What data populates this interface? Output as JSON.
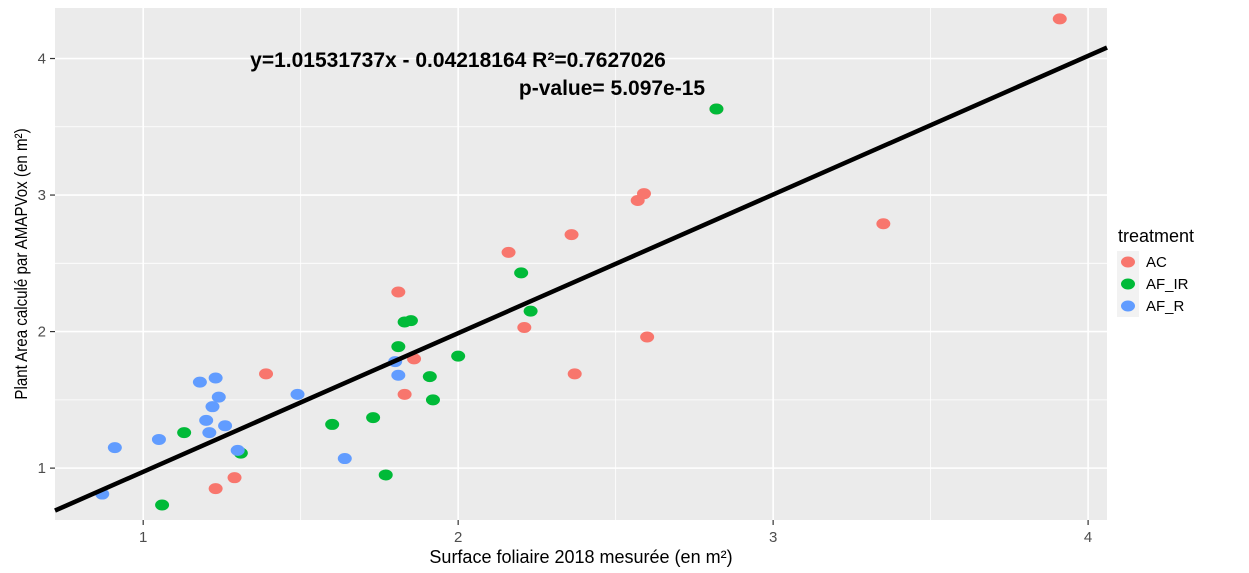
{
  "chart_data": {
    "type": "scatter",
    "xlabel": "Surface foliaire 2018 mesurée (en m²)",
    "ylabel": "Plant Area calculé par AMAPVox (en m²)",
    "xlim": [
      0.72,
      4.06
    ],
    "ylim": [
      0.62,
      4.37
    ],
    "x_ticks": [
      1,
      2,
      3,
      4
    ],
    "y_ticks": [
      1,
      2,
      3,
      4
    ],
    "x_tick_labels": [
      "1",
      "2",
      "3",
      "4"
    ],
    "y_tick_labels": [
      "1",
      "2",
      "3",
      "4"
    ],
    "grid": true,
    "legend": {
      "title": "treatment",
      "position": "right"
    },
    "annotations": [
      "y=1.01531737x - 0.04218164 R²=0.7627026",
      "p-value= 5.097e-15"
    ],
    "regression": {
      "slope": 1.01531737,
      "intercept": -0.04218164
    },
    "series": [
      {
        "name": "AC",
        "color": "#F8766D",
        "points": [
          [
            3.91,
            4.29
          ],
          [
            2.82,
            3.63
          ],
          [
            2.59,
            3.01
          ],
          [
            2.57,
            2.96
          ],
          [
            2.36,
            2.71
          ],
          [
            3.35,
            2.79
          ],
          [
            2.16,
            2.58
          ],
          [
            1.81,
            2.29
          ],
          [
            2.21,
            2.03
          ],
          [
            2.6,
            1.96
          ],
          [
            1.86,
            1.8
          ],
          [
            2.37,
            1.69
          ],
          [
            1.39,
            1.69
          ],
          [
            1.83,
            1.54
          ],
          [
            1.29,
            0.93
          ],
          [
            1.23,
            0.85
          ]
        ]
      },
      {
        "name": "AF_IR",
        "color": "#00BA38",
        "points": [
          [
            2.82,
            3.63
          ],
          [
            2.2,
            2.43
          ],
          [
            2.23,
            2.15
          ],
          [
            1.85,
            2.08
          ],
          [
            1.83,
            2.07
          ],
          [
            1.81,
            1.89
          ],
          [
            2.0,
            1.82
          ],
          [
            1.91,
            1.67
          ],
          [
            1.92,
            1.5
          ],
          [
            1.73,
            1.37
          ],
          [
            1.6,
            1.32
          ],
          [
            1.13,
            1.26
          ],
          [
            1.31,
            1.11
          ],
          [
            1.77,
            0.95
          ],
          [
            1.06,
            0.73
          ]
        ]
      },
      {
        "name": "AF_R",
        "color": "#619CFF",
        "points": [
          [
            1.23,
            1.66
          ],
          [
            1.18,
            1.63
          ],
          [
            1.24,
            1.52
          ],
          [
            1.22,
            1.45
          ],
          [
            1.2,
            1.35
          ],
          [
            1.26,
            1.31
          ],
          [
            1.21,
            1.26
          ],
          [
            1.49,
            1.54
          ],
          [
            1.8,
            1.78
          ],
          [
            1.81,
            1.68
          ],
          [
            1.05,
            1.21
          ],
          [
            0.91,
            1.15
          ],
          [
            1.3,
            1.13
          ],
          [
            1.64,
            1.07
          ],
          [
            0.87,
            0.81
          ]
        ]
      }
    ]
  }
}
